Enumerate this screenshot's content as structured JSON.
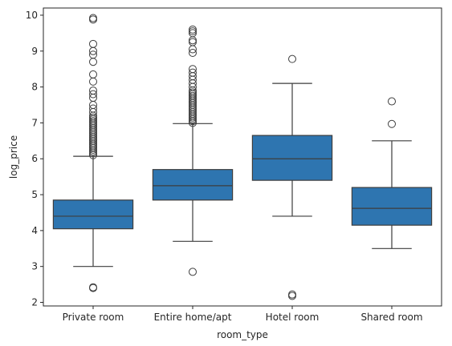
{
  "chart_data": {
    "type": "box",
    "xlabel": "room_type",
    "ylabel": "log_price",
    "categories": [
      "Private room",
      "Entire home/apt",
      "Hotel room",
      "Shared room"
    ],
    "ylim": [
      1.9,
      10.2
    ],
    "yticks": [
      2,
      3,
      4,
      5,
      6,
      7,
      8,
      9,
      10
    ],
    "grid": false,
    "box_color": "#2e75b0",
    "line_color": "#3d3d3d",
    "boxes": [
      {
        "category": "Private room",
        "q1": 4.05,
        "median": 4.4,
        "q3": 4.85,
        "whisker_low": 3.0,
        "whisker_high": 6.07,
        "outliers": [
          2.4,
          2.42,
          6.1,
          6.15,
          6.2,
          6.25,
          6.3,
          6.35,
          6.4,
          6.45,
          6.5,
          6.55,
          6.6,
          6.65,
          6.7,
          6.75,
          6.8,
          6.85,
          6.9,
          6.95,
          7.0,
          7.05,
          7.1,
          7.15,
          7.2,
          7.3,
          7.4,
          7.5,
          7.7,
          7.8,
          7.9,
          8.15,
          8.35,
          8.7,
          8.9,
          9.0,
          9.2,
          9.88,
          9.92
        ]
      },
      {
        "category": "Entire home/apt",
        "q1": 4.85,
        "median": 5.25,
        "q3": 5.7,
        "whisker_low": 3.7,
        "whisker_high": 6.98,
        "outliers": [
          2.85,
          7.0,
          7.05,
          7.1,
          7.15,
          7.2,
          7.25,
          7.3,
          7.35,
          7.4,
          7.45,
          7.5,
          7.55,
          7.6,
          7.65,
          7.7,
          7.75,
          7.8,
          7.85,
          7.9,
          8.0,
          8.1,
          8.2,
          8.3,
          8.4,
          8.5,
          8.95,
          9.05,
          9.25,
          9.3,
          9.5,
          9.55,
          9.6
        ]
      },
      {
        "category": "Hotel room",
        "q1": 5.4,
        "median": 6.0,
        "q3": 6.65,
        "whisker_low": 4.4,
        "whisker_high": 8.1,
        "outliers": [
          2.18,
          2.22,
          8.78
        ]
      },
      {
        "category": "Shared room",
        "q1": 4.15,
        "median": 4.62,
        "q3": 5.2,
        "whisker_low": 3.5,
        "whisker_high": 6.5,
        "outliers": [
          6.97,
          7.6
        ]
      }
    ]
  }
}
